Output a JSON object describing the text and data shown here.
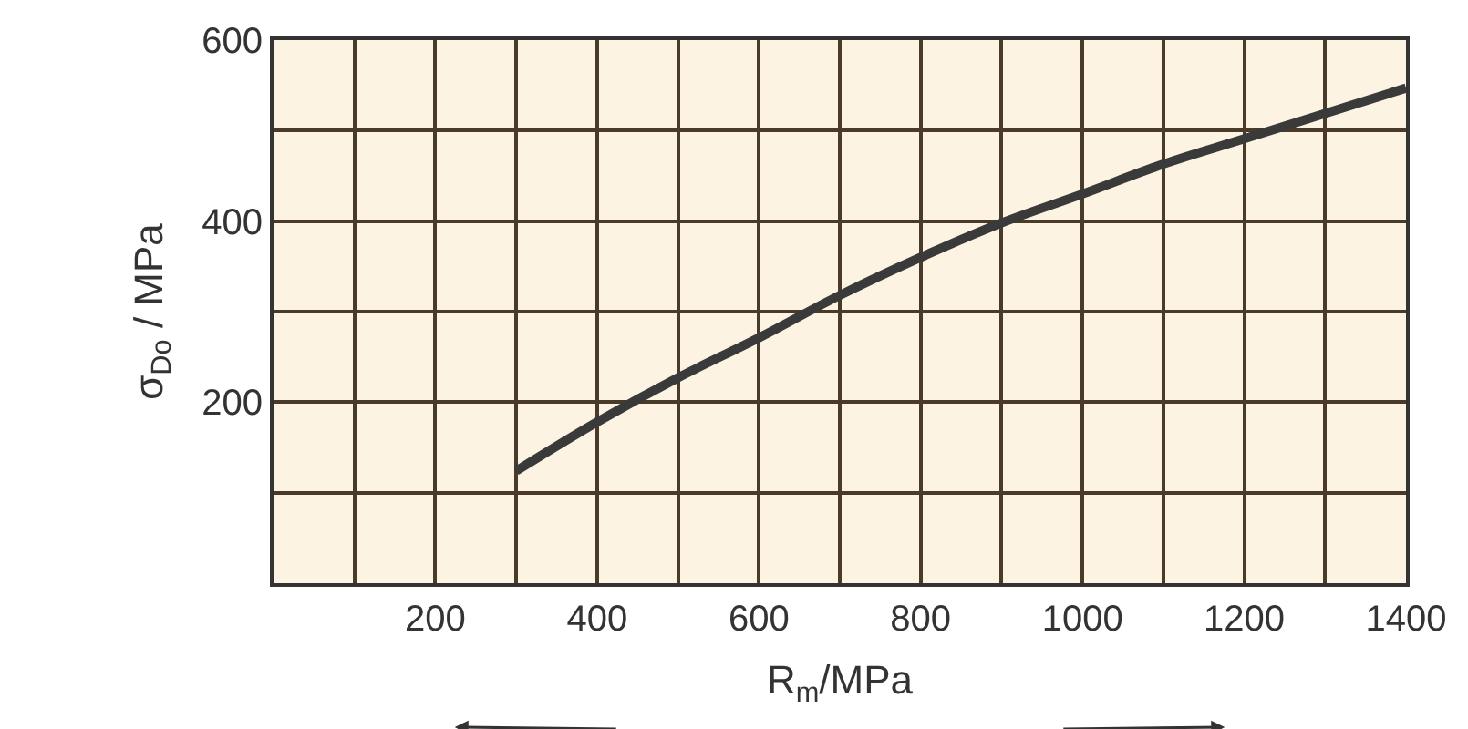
{
  "chart_data": {
    "type": "line",
    "xlabel": "R$_{m}$/MPa",
    "ylabel": "σ$_{Do}$ / MPa",
    "xlim": [
      0,
      1400
    ],
    "ylim": [
      0,
      600
    ],
    "xticks": [
      {
        "value": 100,
        "label": null
      },
      200,
      {
        "value": 300,
        "label": null
      },
      400,
      {
        "value": 500,
        "label": null
      },
      600,
      {
        "value": 700,
        "label": null
      },
      800,
      {
        "value": 900,
        "label": null
      },
      1000,
      {
        "value": 1100,
        "label": null
      },
      1200,
      {
        "value": 1300,
        "label": null
      },
      1400
    ],
    "yticks": [
      {
        "value": 100,
        "label": null
      },
      200,
      {
        "value": 300,
        "label": null
      },
      400,
      {
        "value": 500,
        "label": null
      },
      600
    ],
    "grid": true,
    "marker": "none",
    "line_style": "solid",
    "series": [
      {
        "color": "#3a3a3a",
        "x": [
          300,
          400,
          500,
          600,
          700,
          800,
          900,
          1000,
          1100,
          1200,
          1300,
          1400
        ],
        "values": [
          124,
          178,
          227,
          271,
          318,
          360,
          398,
          430,
          463,
          491,
          519,
          547
        ]
      }
    ]
  }
}
